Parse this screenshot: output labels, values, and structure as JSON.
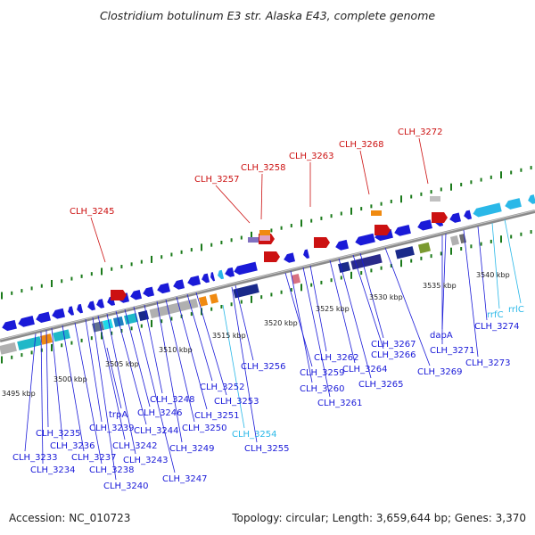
{
  "title": "Clostridium botulinum E3 str. Alaska E43, complete genome",
  "footer": {
    "accession": "Accession: NC_010723",
    "summary": "Topology: circular; Length: 3,659,644 bp; Genes: 3,370"
  },
  "colors": {
    "gene": "#1a1ad8",
    "rna": "#2ab8e8",
    "highlight": "#cc1111",
    "backbone": "#888888",
    "tick": "#1a7a1a",
    "leader": "#1a1ad8",
    "leader_rna": "#2ab8e8",
    "leader_highlight": "#cc1111"
  },
  "kbp_ticks": [
    "3495 kbp",
    "3500 kbp",
    "3505 kbp",
    "3510 kbp",
    "3515 kbp",
    "3520 kbp",
    "3525 kbp",
    "3530 kbp",
    "3535 kbp",
    "3540 kbp"
  ],
  "gene_labels_below": [
    "CLH_3233",
    "CLH_3234",
    "CLH_3235",
    "CLH_3236",
    "CLH_3237",
    "CLH_3238",
    "trpA",
    "CLH_3239",
    "CLH_3240",
    "CLH_3242",
    "CLH_3243",
    "CLH_3244",
    "CLH_3246",
    "CLH_3247",
    "CLH_3248",
    "CLH_3249",
    "CLH_3250",
    "CLH_3251",
    "CLH_3252",
    "CLH_3253",
    "CLH_3254",
    "CLH_3255",
    "CLH_3256",
    "CLH_3259",
    "CLH_3260",
    "CLH_3261",
    "CLH_3262",
    "CLH_3264",
    "CLH_3265",
    "CLH_3266",
    "CLH_3267",
    "CLH_3269",
    "dapA",
    "CLH_3271",
    "CLH_3273",
    "CLH_3274",
    "rrfC",
    "rrlC"
  ],
  "gene_labels_above": [
    "CLH_3245",
    "CLH_3257",
    "CLH_3258",
    "CLH_3263",
    "CLH_3268",
    "CLH_3272"
  ]
}
